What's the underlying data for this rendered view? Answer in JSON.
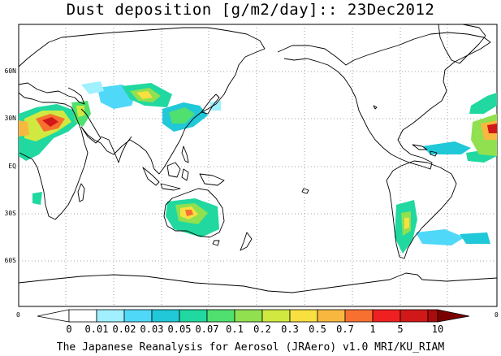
{
  "title": "Dust deposition [g/m2/day]:: 23Dec2012",
  "footer": "The Japanese Reanalysis for Aerosol (JRAero) v1.0 MRI/KU_RIAM",
  "axis": {
    "lat_labels": [
      "60N",
      "30N",
      "EQ",
      "30S",
      "60S"
    ],
    "lon_left": "0",
    "lon_right": "0"
  },
  "colorbar": {
    "labels": [
      "0",
      "0.01",
      "0.02",
      "0.03",
      "0.05",
      "0.07",
      "0.1",
      "0.2",
      "0.3",
      "0.5",
      "0.7",
      "1",
      "5",
      "10"
    ],
    "colors": [
      "#ffffff",
      "#a0f0ff",
      "#50d8f8",
      "#20c8d8",
      "#20d8a0",
      "#50e070",
      "#90e050",
      "#d0e840",
      "#f8e040",
      "#f8b840",
      "#f87030",
      "#f02020",
      "#d01818",
      "#a80c0c",
      "#7a0000"
    ]
  },
  "colors": {
    "coast": "#000000",
    "grid": "#888888",
    "background": "#ffffff"
  }
}
